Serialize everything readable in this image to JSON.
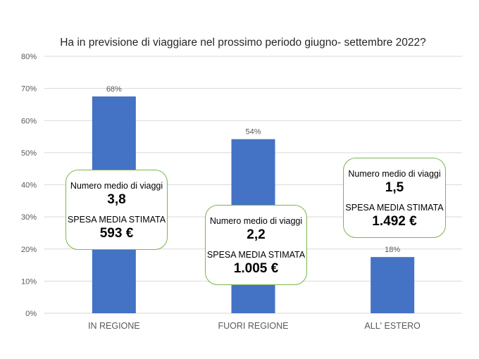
{
  "chart_data": {
    "type": "bar",
    "title": "Ha in previsione di viaggiare nel prossimo periodo giugno- settembre 2022?",
    "categories": [
      "IN REGIONE",
      "FUORI REGIONE",
      "ALL' ESTERO"
    ],
    "values": [
      67.5,
      54.2,
      17.5
    ],
    "data_labels": [
      "68%",
      "54%",
      "18%"
    ],
    "ylim": [
      0,
      80
    ],
    "yticks": [
      "0%",
      "10%",
      "20%",
      "30%",
      "40%",
      "50%",
      "60%",
      "70%",
      "80%"
    ],
    "grid": true,
    "bar_color": "#4472c4",
    "annotations": [
      {
        "trips_label": "Numero medio di viaggi",
        "trips_value": "3,8",
        "spend_label": "SPESA MEDIA STIMATA",
        "spend_value": "593 €"
      },
      {
        "trips_label": "Numero medio di viaggi",
        "trips_value": "2,2",
        "spend_label": "SPESA MEDIA STIMATA",
        "spend_value": "1.005 €"
      },
      {
        "trips_label": "Numero medio di viaggi",
        "trips_value": "1,5",
        "spend_label": "SPESA MEDIA STIMATA",
        "spend_value": "1.492 €"
      }
    ]
  },
  "colors": {
    "callout_border": "#7ab648",
    "grid": "#d9d9d9",
    "text": "#404040"
  }
}
